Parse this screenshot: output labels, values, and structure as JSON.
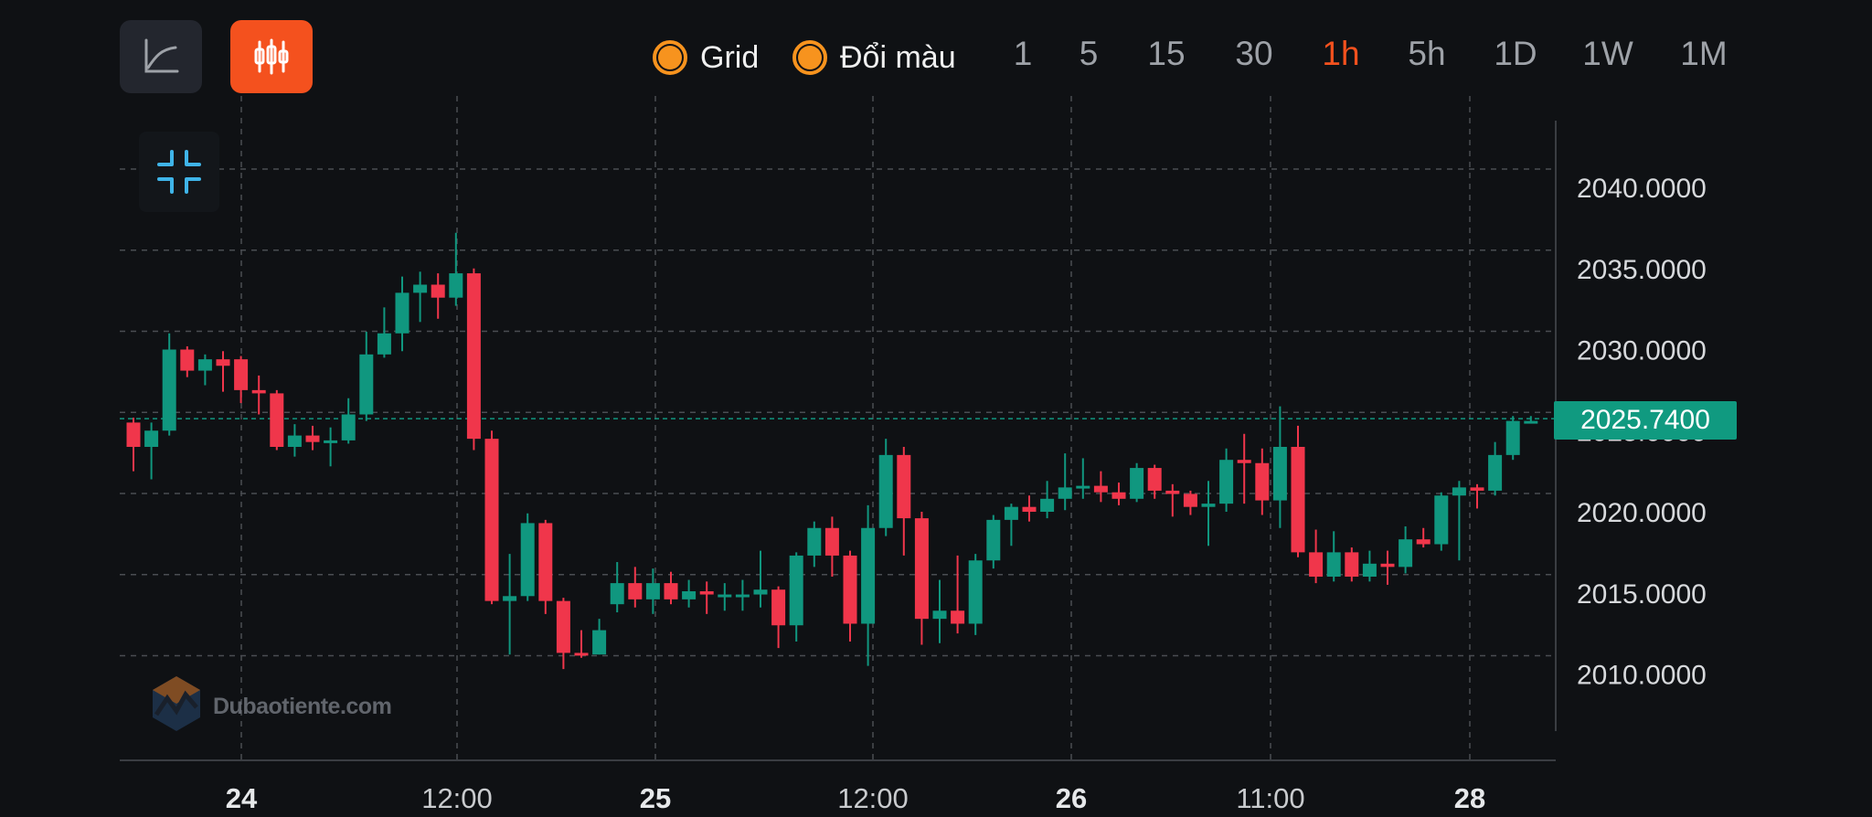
{
  "toolbar": {
    "line_chart_icon": "line-chart-icon",
    "candle_chart_icon": "candlestick-chart-icon",
    "toggles": [
      {
        "label": "Grid",
        "on": true
      },
      {
        "label": "Đổi màu",
        "on": true
      }
    ],
    "timeframes": [
      "1",
      "5",
      "15",
      "30",
      "1h",
      "5h",
      "1D",
      "1W",
      "1M"
    ],
    "active_timeframe": "1h",
    "accent_color": "#f4511e",
    "toggle_color": "#f7931e"
  },
  "watermark": {
    "text": "Dubaotiente.com"
  },
  "collapse_icon": "collapse-arrows-icon",
  "chart_data": {
    "type": "candlestick",
    "x_tick_labels": [
      "24",
      "12:00",
      "25",
      "12:00",
      "26",
      "11:00",
      "28"
    ],
    "y_tick_labels": [
      "2040.0000",
      "2035.0000",
      "2030.0000",
      "2025.0000",
      "2020.0000",
      "2015.0000",
      "2010.0000"
    ],
    "y_ticks": [
      2040,
      2035,
      2030,
      2025,
      2020,
      2015,
      2010
    ],
    "ylim": [
      2006,
      2043.5
    ],
    "grid": true,
    "last_price": 2025.74,
    "last_price_label": "2025.7400",
    "up_color": "#10977f",
    "down_color": "#f0364b",
    "candles": [
      [
        2025.5,
        2024.0,
        2025.8,
        2022.5
      ],
      [
        2024.0,
        2025.0,
        2025.5,
        2022.0
      ],
      [
        2025.0,
        2030.0,
        2031.0,
        2024.7
      ],
      [
        2030.0,
        2028.7,
        2030.2,
        2028.3
      ],
      [
        2028.7,
        2029.4,
        2029.7,
        2027.8
      ],
      [
        2029.4,
        2029.0,
        2029.9,
        2027.4
      ],
      [
        2029.4,
        2027.5,
        2029.6,
        2026.7
      ],
      [
        2027.5,
        2027.3,
        2028.4,
        2026.0
      ],
      [
        2027.3,
        2024.0,
        2027.5,
        2023.8
      ],
      [
        2024.0,
        2024.7,
        2025.4,
        2023.4
      ],
      [
        2024.7,
        2024.3,
        2025.3,
        2023.8
      ],
      [
        2024.3,
        2024.4,
        2025.2,
        2022.8
      ],
      [
        2024.4,
        2026.0,
        2027.0,
        2024.2
      ],
      [
        2026.0,
        2029.7,
        2031.1,
        2025.6
      ],
      [
        2029.7,
        2031.0,
        2032.6,
        2029.5
      ],
      [
        2031.0,
        2033.5,
        2034.5,
        2029.9
      ],
      [
        2033.5,
        2034.0,
        2034.8,
        2031.7
      ],
      [
        2034.0,
        2033.2,
        2034.7,
        2031.9
      ],
      [
        2033.2,
        2034.7,
        2037.2,
        2032.7
      ],
      [
        2034.7,
        2024.5,
        2035.0,
        2023.8
      ],
      [
        2024.5,
        2014.5,
        2025.0,
        2014.3
      ],
      [
        2014.5,
        2014.8,
        2017.4,
        2011.2
      ],
      [
        2014.8,
        2019.3,
        2019.9,
        2014.5
      ],
      [
        2019.3,
        2014.5,
        2019.5,
        2013.7
      ],
      [
        2014.5,
        2011.3,
        2014.7,
        2010.3
      ],
      [
        2011.3,
        2011.2,
        2012.7,
        2011.0
      ],
      [
        2011.2,
        2012.7,
        2013.4,
        2011.2
      ],
      [
        2014.3,
        2015.6,
        2016.9,
        2013.8
      ],
      [
        2015.6,
        2014.6,
        2016.6,
        2014.1
      ],
      [
        2014.6,
        2015.6,
        2016.5,
        2013.7
      ],
      [
        2015.6,
        2014.6,
        2016.3,
        2014.3
      ],
      [
        2014.6,
        2015.1,
        2015.8,
        2014.1
      ],
      [
        2015.1,
        2014.9,
        2015.7,
        2013.7
      ],
      [
        2014.9,
        2014.9,
        2015.6,
        2013.9
      ],
      [
        2014.9,
        2014.9,
        2015.8,
        2013.9
      ],
      [
        2014.9,
        2015.2,
        2017.6,
        2014.1
      ],
      [
        2015.2,
        2013.0,
        2015.4,
        2011.6
      ],
      [
        2013.0,
        2017.3,
        2017.5,
        2012.0
      ],
      [
        2017.3,
        2019.0,
        2019.4,
        2016.6
      ],
      [
        2019.0,
        2017.3,
        2019.7,
        2016.0
      ],
      [
        2017.3,
        2013.1,
        2017.6,
        2012.0
      ],
      [
        2013.1,
        2019.0,
        2020.4,
        2010.5
      ],
      [
        2019.0,
        2023.5,
        2024.5,
        2018.5
      ],
      [
        2023.5,
        2019.6,
        2024.0,
        2017.3
      ],
      [
        2019.6,
        2013.4,
        2020.0,
        2011.8
      ],
      [
        2013.4,
        2013.9,
        2015.8,
        2011.9
      ],
      [
        2013.9,
        2013.1,
        2017.3,
        2012.5
      ],
      [
        2013.1,
        2017.0,
        2017.4,
        2012.4
      ],
      [
        2017.0,
        2019.5,
        2019.8,
        2016.5
      ],
      [
        2019.5,
        2020.3,
        2020.5,
        2017.9
      ],
      [
        2020.3,
        2020.0,
        2021.0,
        2019.4
      ],
      [
        2020.0,
        2020.8,
        2021.9,
        2019.6
      ],
      [
        2020.8,
        2021.5,
        2023.6,
        2020.1
      ],
      [
        2021.5,
        2021.6,
        2023.3,
        2020.8
      ],
      [
        2021.6,
        2021.2,
        2022.5,
        2020.6
      ],
      [
        2021.2,
        2020.8,
        2021.8,
        2020.4
      ],
      [
        2020.8,
        2022.7,
        2023.0,
        2020.6
      ],
      [
        2022.7,
        2021.3,
        2022.9,
        2020.8
      ],
      [
        2021.3,
        2021.1,
        2021.7,
        2019.7
      ],
      [
        2021.1,
        2020.3,
        2021.3,
        2019.8
      ],
      [
        2020.3,
        2020.5,
        2021.9,
        2017.9
      ],
      [
        2020.5,
        2023.2,
        2023.9,
        2020.0
      ],
      [
        2023.2,
        2023.0,
        2024.8,
        2020.5
      ],
      [
        2023.0,
        2020.7,
        2023.9,
        2019.8
      ],
      [
        2020.7,
        2024.0,
        2026.5,
        2019.0
      ],
      [
        2024.0,
        2017.5,
        2025.3,
        2017.2
      ],
      [
        2017.5,
        2016.0,
        2018.9,
        2015.6
      ],
      [
        2016.0,
        2017.5,
        2018.8,
        2015.7
      ],
      [
        2017.5,
        2016.0,
        2017.8,
        2015.7
      ],
      [
        2016.0,
        2016.8,
        2017.6,
        2015.7
      ],
      [
        2016.8,
        2016.6,
        2017.6,
        2015.5
      ],
      [
        2016.6,
        2018.3,
        2019.1,
        2016.2
      ],
      [
        2018.3,
        2018.0,
        2019.0,
        2017.8
      ],
      [
        2018.0,
        2021.0,
        2021.2,
        2017.6
      ],
      [
        2021.0,
        2021.5,
        2021.9,
        2017.0
      ],
      [
        2021.5,
        2021.3,
        2021.7,
        2020.2
      ],
      [
        2021.3,
        2023.5,
        2024.3,
        2021.0
      ],
      [
        2023.5,
        2025.6,
        2025.9,
        2023.2
      ],
      [
        2025.6,
        2025.6,
        2025.9,
        2025.5
      ]
    ]
  }
}
